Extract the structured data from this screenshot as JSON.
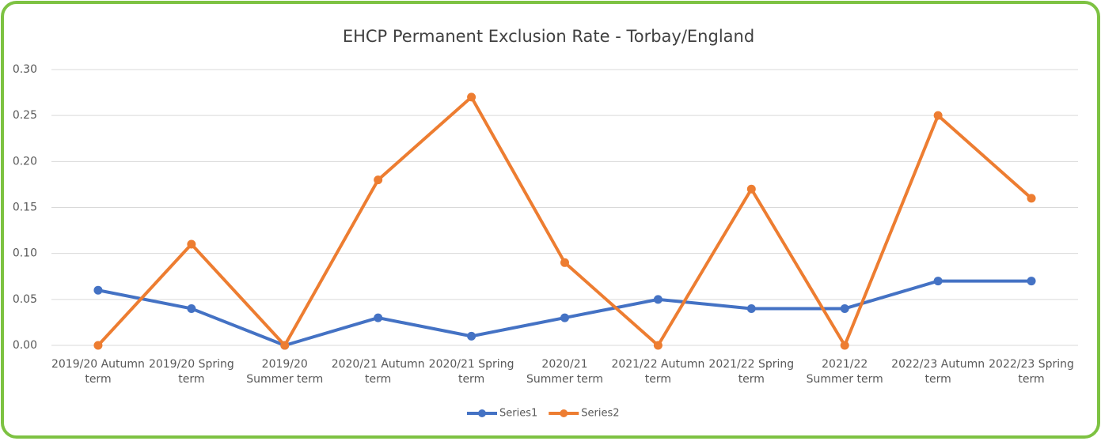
{
  "chart_data": {
    "type": "line",
    "title": "EHCP Permanent Exclusion Rate - Torbay/England",
    "categories": [
      "2019/20 Autumn term",
      "2019/20 Spring term",
      "2019/20 Summer term",
      "2020/21 Autumn term",
      "2020/21 Spring term",
      "2020/21 Summer term",
      "2021/22 Autumn term",
      "2021/22 Spring term",
      "2021/22 Summer term",
      "2022/23 Autumn term",
      "2022/23 Spring term"
    ],
    "series": [
      {
        "name": "Series1",
        "color": "#4472c4",
        "values": [
          0.06,
          0.04,
          0,
          0.03,
          0.01,
          0.03,
          0.05,
          0.04,
          0.04,
          0.07,
          0.07
        ]
      },
      {
        "name": "Series2",
        "color": "#ed7d31",
        "values": [
          0,
          0.11,
          0,
          0.18,
          0.27,
          0.09,
          0,
          0.17,
          0,
          0.25,
          0.16
        ]
      }
    ],
    "ylim": [
      0,
      0.3
    ],
    "yticks": [
      {
        "value": 0,
        "label": "0.00"
      },
      {
        "value": 0.05,
        "label": "0.05"
      },
      {
        "value": 0.1,
        "label": "0.10"
      },
      {
        "value": 0.15,
        "label": "0.15"
      },
      {
        "value": 0.2,
        "label": "0.20"
      },
      {
        "value": 0.25,
        "label": "0.25"
      },
      {
        "value": 0.3,
        "label": "0.30"
      }
    ],
    "grid": true,
    "legend": "bottom"
  }
}
